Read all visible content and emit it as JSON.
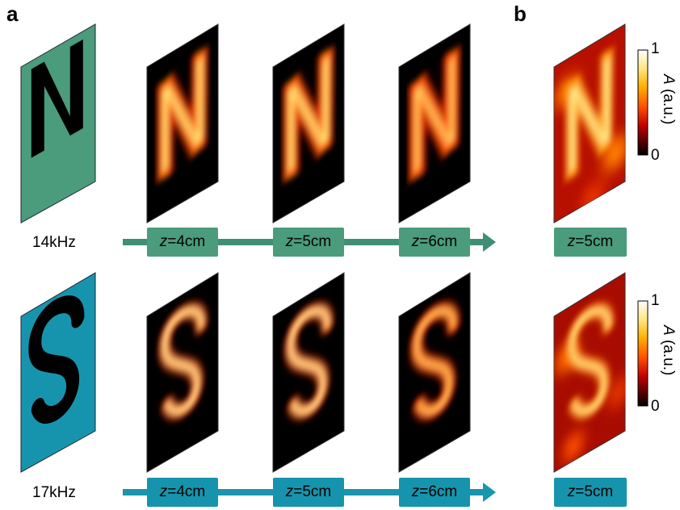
{
  "panels": {
    "a": "a",
    "b": "b"
  },
  "rows": [
    {
      "letter": "N",
      "frequency": "14kHz",
      "target_color": "#4a9c7c",
      "accent_color": "#3f8f76",
      "planes": [
        {
          "z_prefix": "z",
          "z_value": "=4cm"
        },
        {
          "z_prefix": "z",
          "z_value": "=5cm"
        },
        {
          "z_prefix": "z",
          "z_value": "=6cm"
        }
      ],
      "measured": {
        "z_prefix": "z",
        "z_value": "=5cm"
      }
    },
    {
      "letter": "S",
      "frequency": "17kHz",
      "target_color": "#1794ad",
      "accent_color": "#1b95ad",
      "planes": [
        {
          "z_prefix": "z",
          "z_value": "=4cm"
        },
        {
          "z_prefix": "z",
          "z_value": "=5cm"
        },
        {
          "z_prefix": "z",
          "z_value": "=6cm"
        }
      ],
      "measured": {
        "z_prefix": "z",
        "z_value": "=5cm"
      }
    }
  ],
  "colorbar": {
    "max": "1",
    "min": "0",
    "label_symbol": "A",
    "label_unit": " (a.u.)",
    "colormap": [
      "#ffffff",
      "#ffe680",
      "#ffb000",
      "#ff4a00",
      "#c00000",
      "#500000",
      "#000000"
    ]
  }
}
